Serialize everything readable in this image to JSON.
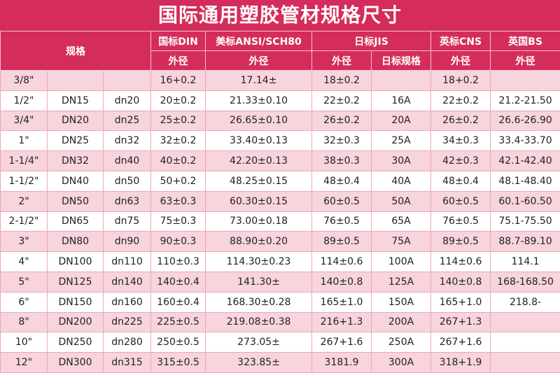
{
  "header": {
    "title": "国际通用塑胶管材规格尺寸"
  },
  "table": {
    "header_row1": [
      "规格",
      "国标DIN",
      "美标ANSI/SCH80",
      "日标JIS",
      "英标CNS",
      "英国BS"
    ],
    "header_row2": [
      "外径",
      "外径",
      "外径",
      "日标规格",
      "外径",
      "外径"
    ],
    "rows": [
      [
        "3/8\"",
        null,
        null,
        "16+0.2",
        "17.14±",
        "18±0.2",
        null,
        "18+0.2",
        null
      ],
      [
        "1/2\"",
        "DN15",
        "dn20",
        "20±0.2",
        "21.33±0.10",
        "22±0.2",
        "16A",
        "22±0.2",
        "21.2-21.50"
      ],
      [
        "3/4\"",
        "DN20",
        "dn25",
        "25±0.2",
        "26.65±0.10",
        "26±0.2",
        "20A",
        "26±0.2",
        "26.6-26.90"
      ],
      [
        "1\"",
        "DN25",
        "dn32",
        "32±0.2",
        "33.40±0.13",
        "32±0.3",
        "25A",
        "34±0.3",
        "33.4-33.70"
      ],
      [
        "1-1/4\"",
        "DN32",
        "dn40",
        "40±0.2",
        "42.20±0.13",
        "38±0.3",
        "30A",
        "42±0.3",
        "42.1-42.40"
      ],
      [
        "1-1/2\"",
        "DN40",
        "dn50",
        "50+0.2",
        "48.25±0.15",
        "48±0.4",
        "40A",
        "48±0.4",
        "48.1-48.40"
      ],
      [
        "2\"",
        "DN50",
        "dn63",
        "63±0.3",
        "60.30±0.15",
        "60±0.5",
        "50A",
        "60±0.5",
        "60.1-60.50"
      ],
      [
        "2-1/2\"",
        "DN65",
        "dn75",
        "75±0.3",
        "73.00±0.18",
        "76±0.5",
        "65A",
        "76±0.5",
        "75.1-75.50"
      ],
      [
        "3\"",
        "DN80",
        "dn90",
        "90±0.3",
        "88.90±0.20",
        "89±0.5",
        "75A",
        "89±0.5",
        "88.7-89.10"
      ],
      [
        "4\"",
        "DN100",
        "dn110",
        "110±0.3",
        "114.30±0.23",
        "114±0.6",
        "100A",
        "114±0.6",
        "114.1"
      ],
      [
        "5\"",
        "DN125",
        "dn140",
        "140±0.4",
        "141.30±",
        "140±0.8",
        "125A",
        "140±0.8",
        "168-168.50"
      ],
      [
        "6\"",
        "DN150",
        "dn160",
        "160±0.4",
        "168.30±0.28",
        "165±1.0",
        "150A",
        "165+1.0",
        "218.8-"
      ],
      [
        "8\"",
        "DN200",
        "dn225",
        "225±0.5",
        "219.08±0.38",
        "216+1.3",
        "200A",
        "267+1.3",
        null
      ],
      [
        "10\"",
        "DN250",
        "dn280",
        "250±0.5",
        "273.05±",
        "267+1.6",
        "250A",
        "267+1.6",
        null
      ],
      [
        "12\"",
        "DN300",
        "dn315",
        "315±0.5",
        "323.85±",
        "3181.9",
        "300A",
        "318+1.9",
        null
      ]
    ]
  }
}
